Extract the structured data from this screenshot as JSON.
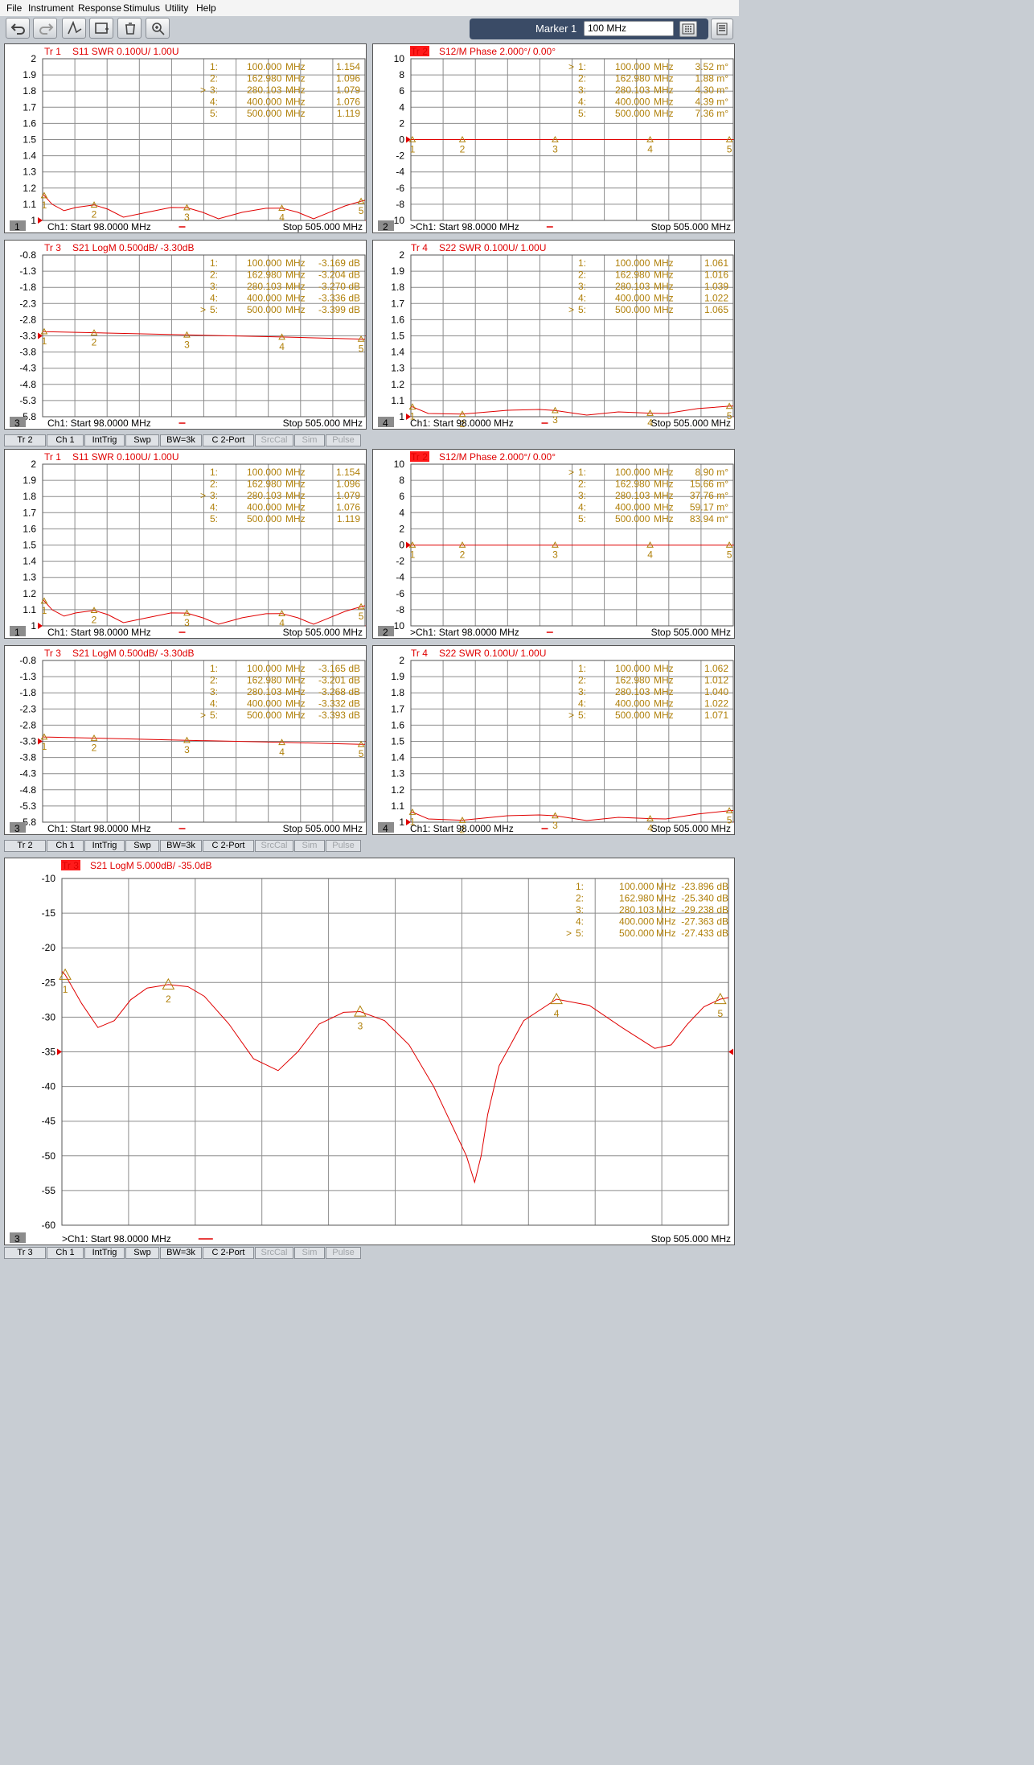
{
  "menu": [
    "File",
    "Instrument",
    "Response",
    "Stimulus",
    "Utility",
    "Help"
  ],
  "toolbar": {
    "marker_label": "Marker 1",
    "marker_value": "100 MHz"
  },
  "colors": {
    "trace": "#e00000",
    "marker": "#b0800a",
    "highlight": "#ff1a1a"
  },
  "status_bars": [
    [
      "Tr 2",
      "Ch 1",
      "IntTrig",
      "Swp",
      "BW=3k",
      "C  2-Port",
      "SrcCal",
      "Sim",
      "Pulse"
    ],
    [
      "Tr 2",
      "Ch 1",
      "IntTrig",
      "Swp",
      "BW=3k",
      "C  2-Port",
      "SrcCal",
      "Sim",
      "Pulse"
    ],
    [
      "Tr 3",
      "Ch 1",
      "IntTrig",
      "Swp",
      "BW=3k",
      "C  2-Port",
      "SrcCal",
      "Sim",
      "Pulse"
    ]
  ],
  "panels": [
    {
      "id": 1,
      "trace": "Tr  1",
      "title": "S11 SWR 0.100U/  1.00U",
      "title_hl": false,
      "number": "1",
      "yticks": [
        "2",
        "1.9",
        "1.8",
        "1.7",
        "1.6",
        "1.5",
        "1.4",
        "1.3",
        "1.2",
        "1.1",
        "1"
      ],
      "markers": [
        [
          "",
          "1:",
          "100.000",
          "MHz",
          "1.154"
        ],
        [
          "",
          "2:",
          "162.980",
          "MHz",
          "1.096"
        ],
        [
          ">",
          "3:",
          "280.103",
          "MHz",
          "1.079"
        ],
        [
          "",
          "4:",
          "400.000",
          "MHz",
          "1.076"
        ],
        [
          "",
          "5:",
          "500.000",
          "MHz",
          "1.119"
        ]
      ],
      "footer_start": "Ch1:  Start   98.0000 MHz",
      "footer_stop": "Stop  505.000 MHz"
    },
    {
      "id": 2,
      "trace": "Tr  2",
      "title": "S12/M Phase 2.000°/  0.00°",
      "title_hl": true,
      "number": "2",
      "yticks": [
        "10",
        "8",
        "6",
        "4",
        "2",
        "0",
        "-2",
        "-4",
        "-6",
        "-8",
        "-10"
      ],
      "markers": [
        [
          ">",
          "1:",
          "100.000",
          "MHz",
          "3.52 m°"
        ],
        [
          "",
          "2:",
          "162.980",
          "MHz",
          "1.88 m°"
        ],
        [
          "",
          "3:",
          "280.103",
          "MHz",
          "4.30 m°"
        ],
        [
          "",
          "4:",
          "400.000",
          "MHz",
          "4.39 m°"
        ],
        [
          "",
          "5:",
          "500.000",
          "MHz",
          "7.36 m°"
        ]
      ],
      "footer_start": ">Ch1:  Start   98.0000 MHz",
      "footer_stop": "Stop  505.000 MHz"
    },
    {
      "id": 3,
      "trace": "Tr  3",
      "title": "S21 LogM 0.500dB/  -3.30dB",
      "title_hl": false,
      "number": "3",
      "yticks": [
        "-0.8",
        "-1.3",
        "-1.8",
        "-2.3",
        "-2.8",
        "-3.3",
        "-3.8",
        "-4.3",
        "-4.8",
        "-5.3",
        "-5.8"
      ],
      "markers": [
        [
          "",
          "1:",
          "100.000",
          "MHz",
          "-3.169 dB"
        ],
        [
          "",
          "2:",
          "162.980",
          "MHz",
          "-3.204 dB"
        ],
        [
          "",
          "3:",
          "280.103",
          "MHz",
          "-3.270 dB"
        ],
        [
          "",
          "4:",
          "400.000",
          "MHz",
          "-3.336 dB"
        ],
        [
          ">",
          "5:",
          "500.000",
          "MHz",
          "-3.399 dB"
        ]
      ],
      "footer_start": "Ch1:  Start   98.0000 MHz",
      "footer_stop": "Stop  505.000 MHz"
    },
    {
      "id": 4,
      "trace": "Tr  4",
      "title": "S22 SWR 0.100U/  1.00U",
      "title_hl": false,
      "number": "4",
      "yticks": [
        "2",
        "1.9",
        "1.8",
        "1.7",
        "1.6",
        "1.5",
        "1.4",
        "1.3",
        "1.2",
        "1.1",
        "1"
      ],
      "markers": [
        [
          "",
          "1:",
          "100.000",
          "MHz",
          "1.061"
        ],
        [
          "",
          "2:",
          "162.980",
          "MHz",
          "1.016"
        ],
        [
          "",
          "3:",
          "280.103",
          "MHz",
          "1.039"
        ],
        [
          "",
          "4:",
          "400.000",
          "MHz",
          "1.022"
        ],
        [
          ">",
          "5:",
          "500.000",
          "MHz",
          "1.065"
        ]
      ],
      "footer_start": "Ch1:  Start   98.0000 MHz",
      "footer_stop": "Stop  505.000 MHz"
    },
    {
      "id": 5,
      "trace": "Tr  1",
      "title": "S11 SWR 0.100U/  1.00U",
      "title_hl": false,
      "number": "1",
      "yticks": [
        "2",
        "1.9",
        "1.8",
        "1.7",
        "1.6",
        "1.5",
        "1.4",
        "1.3",
        "1.2",
        "1.1",
        "1"
      ],
      "markers": [
        [
          "",
          "1:",
          "100.000",
          "MHz",
          "1.154"
        ],
        [
          "",
          "2:",
          "162.980",
          "MHz",
          "1.096"
        ],
        [
          ">",
          "3:",
          "280.103",
          "MHz",
          "1.079"
        ],
        [
          "",
          "4:",
          "400.000",
          "MHz",
          "1.076"
        ],
        [
          "",
          "5:",
          "500.000",
          "MHz",
          "1.119"
        ]
      ],
      "footer_start": "Ch1:  Start   98.0000 MHz",
      "footer_stop": "Stop  505.000 MHz"
    },
    {
      "id": 6,
      "trace": "Tr  2",
      "title": "S12/M Phase 2.000°/  0.00°",
      "title_hl": true,
      "number": "2",
      "yticks": [
        "10",
        "8",
        "6",
        "4",
        "2",
        "0",
        "-2",
        "-4",
        "-6",
        "-8",
        "-10"
      ],
      "markers": [
        [
          ">",
          "1:",
          "100.000",
          "MHz",
          "8.90 m°"
        ],
        [
          "",
          "2:",
          "162.980",
          "MHz",
          "15.66 m°"
        ],
        [
          "",
          "3:",
          "280.103",
          "MHz",
          "37.76 m°"
        ],
        [
          "",
          "4:",
          "400.000",
          "MHz",
          "59.17 m°"
        ],
        [
          "",
          "5:",
          "500.000",
          "MHz",
          "83.94 m°"
        ]
      ],
      "footer_start": ">Ch1:  Start   98.0000 MHz",
      "footer_stop": "Stop  505.000 MHz"
    },
    {
      "id": 7,
      "trace": "Tr  3",
      "title": "S21 LogM 0.500dB/  -3.30dB",
      "title_hl": false,
      "number": "3",
      "yticks": [
        "-0.8",
        "-1.3",
        "-1.8",
        "-2.3",
        "-2.8",
        "-3.3",
        "-3.8",
        "-4.3",
        "-4.8",
        "-5.3",
        "-5.8"
      ],
      "markers": [
        [
          "",
          "1:",
          "100.000",
          "MHz",
          "-3.165 dB"
        ],
        [
          "",
          "2:",
          "162.980",
          "MHz",
          "-3.201 dB"
        ],
        [
          "",
          "3:",
          "280.103",
          "MHz",
          "-3.268 dB"
        ],
        [
          "",
          "4:",
          "400.000",
          "MHz",
          "-3.332 dB"
        ],
        [
          ">",
          "5:",
          "500.000",
          "MHz",
          "-3.393 dB"
        ]
      ],
      "footer_start": "Ch1:  Start   98.0000 MHz",
      "footer_stop": "Stop  505.000 MHz"
    },
    {
      "id": 8,
      "trace": "Tr  4",
      "title": "S22 SWR 0.100U/  1.00U",
      "title_hl": false,
      "number": "4",
      "yticks": [
        "2",
        "1.9",
        "1.8",
        "1.7",
        "1.6",
        "1.5",
        "1.4",
        "1.3",
        "1.2",
        "1.1",
        "1"
      ],
      "markers": [
        [
          "",
          "1:",
          "100.000",
          "MHz",
          "1.062"
        ],
        [
          "",
          "2:",
          "162.980",
          "MHz",
          "1.012"
        ],
        [
          "",
          "3:",
          "280.103",
          "MHz",
          "1.040"
        ],
        [
          "",
          "4:",
          "400.000",
          "MHz",
          "1.022"
        ],
        [
          ">",
          "5:",
          "500.000",
          "MHz",
          "1.071"
        ]
      ],
      "footer_start": "Ch1:  Start   98.0000 MHz",
      "footer_stop": "Stop  505.000 MHz"
    },
    {
      "id": 9,
      "trace": "Tr  3",
      "title": "S21 LogM 5.000dB/  -35.0dB",
      "title_hl": true,
      "number": "3",
      "yticks": [
        "-10",
        "-15",
        "-20",
        "-25",
        "-30",
        "-35",
        "-40",
        "-45",
        "-50",
        "-55",
        "-60"
      ],
      "markers": [
        [
          "",
          "1:",
          "100.000",
          "MHz",
          "-23.896 dB"
        ],
        [
          "",
          "2:",
          "162.980",
          "MHz",
          "-25.340 dB"
        ],
        [
          "",
          "3:",
          "280.103",
          "MHz",
          "-29.238 dB"
        ],
        [
          "",
          "4:",
          "400.000",
          "MHz",
          "-27.363 dB"
        ],
        [
          ">",
          "5:",
          "500.000",
          "MHz",
          "-27.433 dB"
        ]
      ],
      "footer_start": ">Ch1:  Start   98.0000 MHz",
      "footer_stop": "Stop  505.000 MHz"
    }
  ],
  "chart_data": [
    {
      "type": "line",
      "title": "S11 SWR 0.100U/  1.00U",
      "ylim": [
        1,
        2
      ],
      "xlim_mhz": [
        98,
        505
      ],
      "series": [
        {
          "x": [
            98,
            100,
            110,
            125,
            140,
            162.98,
            180,
            200,
            230,
            260,
            280.103,
            300,
            320,
            350,
            380,
            400,
            420,
            440,
            460,
            480,
            500,
            505
          ],
          "y": [
            1.16,
            1.154,
            1.1,
            1.06,
            1.08,
            1.096,
            1.07,
            1.02,
            1.05,
            1.08,
            1.079,
            1.05,
            1.01,
            1.05,
            1.075,
            1.076,
            1.05,
            1.01,
            1.05,
            1.09,
            1.119,
            1.125
          ]
        }
      ]
    },
    {
      "type": "line",
      "title": "S12/M Phase 2.000°/  0.00°",
      "ylim": [
        -10,
        10
      ],
      "xlim_mhz": [
        98,
        505
      ],
      "series": [
        {
          "x": [
            98,
            505
          ],
          "y": [
            0,
            0
          ]
        }
      ]
    },
    {
      "type": "line",
      "title": "S21 LogM 0.500dB/  -3.30dB",
      "ylim": [
        -5.8,
        -0.8
      ],
      "xlim_mhz": [
        98,
        505
      ],
      "series": [
        {
          "x": [
            98,
            100,
            162.98,
            280.103,
            400,
            500,
            505
          ],
          "y": [
            -3.16,
            -3.169,
            -3.204,
            -3.27,
            -3.336,
            -3.399,
            -3.4
          ]
        }
      ]
    },
    {
      "type": "line",
      "title": "S22 SWR 0.100U/  1.00U",
      "ylim": [
        1,
        2
      ],
      "xlim_mhz": [
        98,
        505
      ],
      "series": [
        {
          "x": [
            98,
            100,
            120,
            162.98,
            220,
            260,
            280.103,
            320,
            360,
            400,
            420,
            460,
            500,
            505
          ],
          "y": [
            1.06,
            1.061,
            1.02,
            1.016,
            1.04,
            1.045,
            1.039,
            1.01,
            1.03,
            1.022,
            1.02,
            1.05,
            1.065,
            1.066
          ]
        }
      ]
    },
    {
      "type": "line",
      "title": "S11 SWR 0.100U/  1.00U",
      "ylim": [
        1,
        2
      ],
      "xlim_mhz": [
        98,
        505
      ],
      "series": [
        {
          "x": [
            98,
            100,
            110,
            125,
            140,
            162.98,
            180,
            200,
            230,
            260,
            280.103,
            300,
            320,
            350,
            380,
            400,
            420,
            440,
            460,
            480,
            500,
            505
          ],
          "y": [
            1.16,
            1.154,
            1.1,
            1.06,
            1.08,
            1.096,
            1.07,
            1.02,
            1.05,
            1.08,
            1.079,
            1.05,
            1.01,
            1.05,
            1.075,
            1.076,
            1.05,
            1.01,
            1.05,
            1.09,
            1.119,
            1.125
          ]
        }
      ]
    },
    {
      "type": "line",
      "title": "S12/M Phase 2.000°/  0.00°",
      "ylim": [
        -10,
        10
      ],
      "xlim_mhz": [
        98,
        505
      ],
      "series": [
        {
          "x": [
            98,
            505
          ],
          "y": [
            0,
            0
          ]
        }
      ]
    },
    {
      "type": "line",
      "title": "S21 LogM 0.500dB/  -3.30dB",
      "ylim": [
        -5.8,
        -0.8
      ],
      "xlim_mhz": [
        98,
        505
      ],
      "series": [
        {
          "x": [
            98,
            100,
            162.98,
            280.103,
            400,
            500,
            505
          ],
          "y": [
            -3.16,
            -3.165,
            -3.201,
            -3.268,
            -3.332,
            -3.393,
            -3.395
          ]
        }
      ]
    },
    {
      "type": "line",
      "title": "S22 SWR 0.100U/  1.00U",
      "ylim": [
        1,
        2
      ],
      "xlim_mhz": [
        98,
        505
      ],
      "series": [
        {
          "x": [
            98,
            100,
            120,
            162.98,
            220,
            260,
            280.103,
            320,
            360,
            400,
            420,
            460,
            500,
            505
          ],
          "y": [
            1.06,
            1.062,
            1.02,
            1.012,
            1.04,
            1.045,
            1.04,
            1.01,
            1.03,
            1.022,
            1.02,
            1.05,
            1.071,
            1.072
          ]
        }
      ]
    },
    {
      "type": "line",
      "title": "S21 LogM 5.000dB/  -35.0dB",
      "ylim": [
        -60,
        -10
      ],
      "xlim_mhz": [
        98,
        505
      ],
      "series": [
        {
          "x": [
            98,
            100,
            110,
            120,
            130,
            140,
            150,
            162.98,
            175,
            185,
            200,
            215,
            230,
            242,
            255,
            270,
            280.103,
            295,
            310,
            325,
            335,
            345,
            350,
            354,
            358,
            365,
            380,
            400,
            420,
            440,
            460,
            470,
            480,
            490,
            500,
            505
          ],
          "y": [
            -23.4,
            -23.9,
            -28,
            -31.5,
            -30.5,
            -27.5,
            -25.8,
            -25.3,
            -25.6,
            -27,
            -31,
            -36,
            -37.7,
            -35,
            -31,
            -29.3,
            -29.2,
            -30.5,
            -34,
            -40,
            -45,
            -50,
            -53.8,
            -50,
            -44,
            -37,
            -30.5,
            -27.4,
            -28.3,
            -31.5,
            -34.5,
            -34,
            -31,
            -28.5,
            -27.4,
            -27.2
          ]
        }
      ]
    }
  ]
}
